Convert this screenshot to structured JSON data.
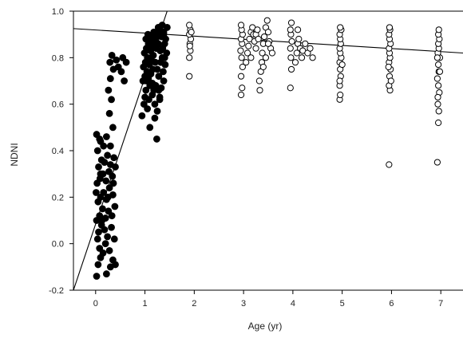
{
  "chart_data": {
    "type": "scatter",
    "xlabel": "Age (yr)",
    "ylabel": "NDNI",
    "xlim": [
      -0.45,
      7.45
    ],
    "ylim": [
      -0.2,
      1.0
    ],
    "x_ticks": [
      0,
      1,
      2,
      3,
      4,
      5,
      6,
      7
    ],
    "x_tick_labels": [
      "0",
      "1",
      "2",
      "3",
      "4",
      "5",
      "6",
      "7"
    ],
    "y_ticks": [
      -0.2,
      0.0,
      0.2,
      0.4,
      0.6,
      0.8,
      1.0
    ],
    "y_tick_labels": [
      "-0.2",
      "0.0",
      "0.2",
      "0.4",
      "0.6",
      "0.8",
      "1.0"
    ],
    "grid": false,
    "series": [
      {
        "marker": "filled",
        "color": "#000000",
        "points": [
          [
            0.02,
            -0.14
          ],
          [
            0.05,
            -0.09
          ],
          [
            0.1,
            -0.06
          ],
          [
            0.22,
            -0.13
          ],
          [
            0.3,
            -0.1
          ],
          [
            0.35,
            -0.07
          ],
          [
            0.4,
            -0.09
          ],
          [
            0.08,
            -0.02
          ],
          [
            0.15,
            -0.04
          ],
          [
            0.28,
            -0.03
          ],
          [
            0.04,
            0.02
          ],
          [
            0.06,
            0.05
          ],
          [
            0.12,
            0.08
          ],
          [
            0.18,
            0.06
          ],
          [
            0.24,
            0.03
          ],
          [
            0.32,
            0.07
          ],
          [
            0.38,
            0.02
          ],
          [
            0.02,
            0.1
          ],
          [
            0.08,
            0.12
          ],
          [
            0.14,
            0.15
          ],
          [
            0.2,
            0.11
          ],
          [
            0.26,
            0.14
          ],
          [
            0.33,
            0.12
          ],
          [
            0.39,
            0.16
          ],
          [
            0.05,
            0.18
          ],
          [
            0.1,
            0.2
          ],
          [
            0.16,
            0.22
          ],
          [
            0.22,
            0.19
          ],
          [
            0.28,
            0.24
          ],
          [
            0.35,
            0.21
          ],
          [
            0.03,
            0.26
          ],
          [
            0.09,
            0.28
          ],
          [
            0.15,
            0.3
          ],
          [
            0.21,
            0.27
          ],
          [
            0.27,
            0.31
          ],
          [
            0.34,
            0.29
          ],
          [
            0.4,
            0.33
          ],
          [
            0.06,
            0.33
          ],
          [
            0.12,
            0.36
          ],
          [
            0.18,
            0.35
          ],
          [
            0.24,
            0.38
          ],
          [
            0.3,
            0.34
          ],
          [
            0.37,
            0.37
          ],
          [
            0.04,
            0.4
          ],
          [
            0.1,
            0.44
          ],
          [
            0.16,
            0.42
          ],
          [
            0.02,
            0.47
          ],
          [
            0.08,
            0.45
          ],
          [
            0.22,
            0.46
          ],
          [
            0.3,
            0.42
          ],
          [
            0.35,
            0.5
          ],
          [
            0.28,
            0.56
          ],
          [
            0.32,
            0.62
          ],
          [
            0.26,
            0.66
          ],
          [
            0.3,
            0.71
          ],
          [
            0.36,
            0.75
          ],
          [
            0.29,
            0.78
          ],
          [
            0.33,
            0.81
          ],
          [
            0.42,
            0.79
          ],
          [
            0.46,
            0.76
          ],
          [
            0.52,
            0.74
          ],
          [
            0.55,
            0.8
          ],
          [
            0.62,
            0.78
          ],
          [
            0.58,
            0.7
          ],
          [
            0.1,
            0.3
          ],
          [
            0.2,
            0.0
          ],
          [
            0.36,
            0.26
          ],
          [
            0.01,
            0.22
          ],
          [
            0.13,
            0.1
          ],
          [
            0.25,
            0.2
          ],
          [
            0.94,
            0.55
          ],
          [
            0.98,
            0.6
          ],
          [
            1.0,
            0.63
          ],
          [
            1.02,
            0.66
          ],
          [
            1.05,
            0.58
          ],
          [
            1.08,
            0.62
          ],
          [
            1.1,
            0.68
          ],
          [
            0.96,
            0.7
          ],
          [
            1.0,
            0.72
          ],
          [
            1.04,
            0.74
          ],
          [
            1.07,
            0.71
          ],
          [
            1.12,
            0.73
          ],
          [
            1.15,
            0.69
          ],
          [
            1.18,
            0.66
          ],
          [
            0.97,
            0.76
          ],
          [
            1.01,
            0.78
          ],
          [
            1.05,
            0.8
          ],
          [
            1.09,
            0.77
          ],
          [
            1.13,
            0.79
          ],
          [
            1.17,
            0.81
          ],
          [
            1.21,
            0.78
          ],
          [
            1.25,
            0.75
          ],
          [
            1.28,
            0.72
          ],
          [
            0.99,
            0.82
          ],
          [
            1.03,
            0.84
          ],
          [
            1.07,
            0.86
          ],
          [
            1.11,
            0.83
          ],
          [
            1.15,
            0.85
          ],
          [
            1.19,
            0.87
          ],
          [
            1.23,
            0.84
          ],
          [
            1.27,
            0.86
          ],
          [
            1.31,
            0.83
          ],
          [
            1.35,
            0.8
          ],
          [
            1.02,
            0.88
          ],
          [
            1.06,
            0.9
          ],
          [
            1.1,
            0.87
          ],
          [
            1.14,
            0.89
          ],
          [
            1.18,
            0.91
          ],
          [
            1.22,
            0.88
          ],
          [
            1.26,
            0.9
          ],
          [
            1.3,
            0.92
          ],
          [
            1.34,
            0.89
          ],
          [
            1.38,
            0.91
          ],
          [
            1.42,
            0.88
          ],
          [
            1.36,
            0.84
          ],
          [
            1.4,
            0.86
          ],
          [
            1.44,
            0.82
          ],
          [
            1.32,
            0.78
          ],
          [
            1.37,
            0.74
          ],
          [
            1.41,
            0.77
          ],
          [
            1.2,
            0.6
          ],
          [
            1.25,
            0.57
          ],
          [
            1.3,
            0.63
          ],
          [
            1.15,
            0.64
          ],
          [
            1.22,
            0.68
          ],
          [
            1.33,
            0.67
          ],
          [
            1.38,
            0.7
          ],
          [
            1.28,
            0.66
          ],
          [
            1.3,
            0.62
          ],
          [
            1.24,
            0.45
          ],
          [
            1.1,
            0.5
          ],
          [
            1.2,
            0.54
          ],
          [
            1.38,
            0.9
          ],
          [
            1.4,
            0.8
          ],
          [
            1.35,
            0.94
          ],
          [
            1.27,
            0.93
          ],
          [
            1.45,
            0.93
          ],
          [
            1.12,
            0.8
          ],
          [
            1.16,
            0.75
          ],
          [
            1.03,
            0.7
          ]
        ]
      },
      {
        "marker": "open",
        "color": "#000000",
        "points": [
          [
            1.9,
            0.72
          ],
          [
            1.9,
            0.8
          ],
          [
            1.92,
            0.83
          ],
          [
            1.91,
            0.86
          ],
          [
            1.93,
            0.88
          ],
          [
            1.9,
            0.9
          ],
          [
            1.92,
            0.92
          ],
          [
            1.9,
            0.94
          ],
          [
            1.94,
            0.91
          ],
          [
            1.91,
            0.85
          ],
          [
            2.95,
            0.64
          ],
          [
            2.97,
            0.67
          ],
          [
            2.95,
            0.72
          ],
          [
            2.98,
            0.76
          ],
          [
            2.96,
            0.8
          ],
          [
            2.94,
            0.83
          ],
          [
            2.97,
            0.86
          ],
          [
            2.95,
            0.88
          ],
          [
            2.98,
            0.9
          ],
          [
            2.96,
            0.92
          ],
          [
            2.95,
            0.94
          ],
          [
            3.05,
            0.78
          ],
          [
            3.08,
            0.82
          ],
          [
            3.1,
            0.85
          ],
          [
            3.12,
            0.88
          ],
          [
            3.15,
            0.91
          ],
          [
            3.18,
            0.93
          ],
          [
            3.2,
            0.9
          ],
          [
            3.22,
            0.87
          ],
          [
            3.25,
            0.84
          ],
          [
            3.25,
            0.9
          ],
          [
            3.28,
            0.92
          ],
          [
            3.3,
            0.88
          ],
          [
            3.32,
            0.7
          ],
          [
            3.33,
            0.66
          ],
          [
            3.35,
            0.74
          ],
          [
            3.37,
            0.78
          ],
          [
            3.38,
            0.82
          ],
          [
            3.4,
            0.86
          ],
          [
            3.42,
            0.89
          ],
          [
            3.45,
            0.93
          ],
          [
            3.48,
            0.96
          ],
          [
            3.5,
            0.91
          ],
          [
            3.52,
            0.87
          ],
          [
            3.55,
            0.84
          ],
          [
            3.58,
            0.82
          ],
          [
            3.45,
            0.8
          ],
          [
            3.5,
            0.86
          ],
          [
            3.4,
            0.76
          ],
          [
            3.15,
            0.8
          ],
          [
            3.95,
            0.67
          ],
          [
            3.97,
            0.75
          ],
          [
            3.96,
            0.8
          ],
          [
            3.95,
            0.84
          ],
          [
            3.98,
            0.87
          ],
          [
            3.96,
            0.9
          ],
          [
            3.95,
            0.92
          ],
          [
            3.97,
            0.95
          ],
          [
            4.05,
            0.78
          ],
          [
            4.08,
            0.82
          ],
          [
            4.1,
            0.86
          ],
          [
            4.12,
            0.88
          ],
          [
            4.15,
            0.84
          ],
          [
            4.18,
            0.8
          ],
          [
            4.2,
            0.83
          ],
          [
            4.25,
            0.86
          ],
          [
            4.3,
            0.82
          ],
          [
            4.35,
            0.84
          ],
          [
            4.4,
            0.8
          ],
          [
            4.1,
            0.92
          ],
          [
            4.95,
            0.62
          ],
          [
            4.96,
            0.64
          ],
          [
            4.95,
            0.68
          ],
          [
            4.97,
            0.72
          ],
          [
            4.96,
            0.75
          ],
          [
            4.95,
            0.78
          ],
          [
            4.98,
            0.8
          ],
          [
            4.96,
            0.82
          ],
          [
            4.95,
            0.84
          ],
          [
            4.97,
            0.86
          ],
          [
            4.96,
            0.88
          ],
          [
            4.95,
            0.9
          ],
          [
            4.98,
            0.92
          ],
          [
            4.96,
            0.93
          ],
          [
            4.95,
            0.7
          ],
          [
            5.0,
            0.77
          ],
          [
            5.95,
            0.34
          ],
          [
            5.97,
            0.66
          ],
          [
            5.95,
            0.68
          ],
          [
            5.96,
            0.72
          ],
          [
            5.98,
            0.75
          ],
          [
            5.95,
            0.78
          ],
          [
            5.97,
            0.8
          ],
          [
            5.96,
            0.82
          ],
          [
            5.95,
            0.84
          ],
          [
            5.98,
            0.86
          ],
          [
            5.96,
            0.88
          ],
          [
            5.95,
            0.9
          ],
          [
            5.97,
            0.92
          ],
          [
            5.96,
            0.93
          ],
          [
            5.99,
            0.7
          ],
          [
            5.94,
            0.76
          ],
          [
            6.93,
            0.35
          ],
          [
            6.95,
            0.52
          ],
          [
            6.96,
            0.57
          ],
          [
            6.94,
            0.6
          ],
          [
            6.97,
            0.65
          ],
          [
            6.95,
            0.68
          ],
          [
            6.93,
            0.71
          ],
          [
            6.96,
            0.74
          ],
          [
            6.95,
            0.77
          ],
          [
            6.98,
            0.8
          ],
          [
            6.94,
            0.82
          ],
          [
            6.96,
            0.84
          ],
          [
            6.95,
            0.86
          ],
          [
            6.97,
            0.88
          ],
          [
            6.95,
            0.9
          ],
          [
            6.96,
            0.92
          ],
          [
            6.94,
            0.63
          ],
          [
            6.98,
            0.74
          ],
          [
            6.93,
            0.8
          ]
        ]
      }
    ],
    "lines": [
      {
        "x": [
          -0.45,
          1.45
        ],
        "y": [
          -0.2,
          1.0
        ]
      },
      {
        "x": [
          -0.45,
          7.45
        ],
        "y": [
          0.925,
          0.82
        ]
      }
    ]
  }
}
